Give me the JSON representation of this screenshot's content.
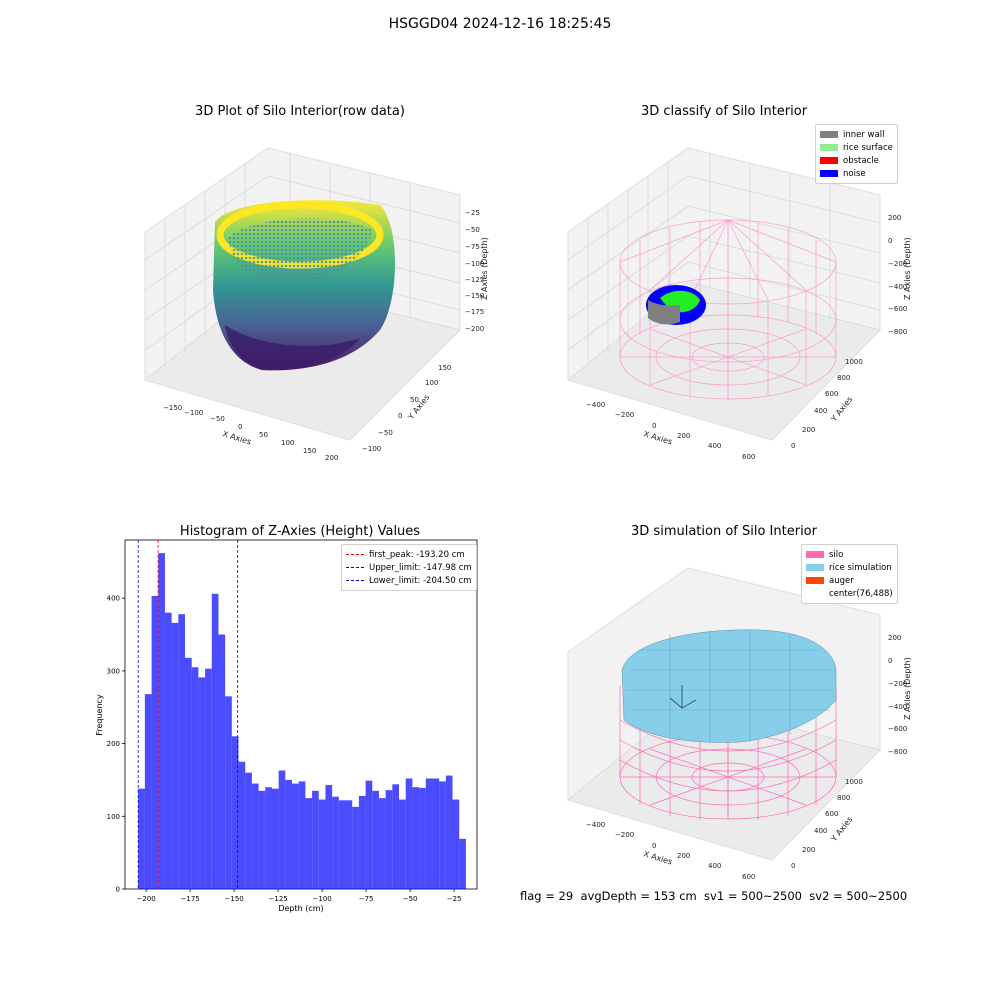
{
  "figure": {
    "suptitle": "HSGGD04 2024-12-16 18:25:45",
    "footer": "flag = 29  avgDepth = 153 cm  sv1 = 500~2500  sv2 = 500~2500"
  },
  "panels": {
    "raw": {
      "title": "3D Plot of Silo Interior(row data)",
      "xlabel": "X Axies",
      "ylabel": "Y Axies",
      "zlabel": "Z Axies (Depth)",
      "xticks": [
        "−150",
        "−100",
        "−50",
        "0",
        "50",
        "100",
        "150",
        "200"
      ],
      "yticks": [
        "−100",
        "−50",
        "0",
        "50",
        "100",
        "150"
      ],
      "zticks": [
        "−25",
        "−50",
        "−75",
        "−100",
        "−125",
        "−150",
        "−175",
        "−200"
      ]
    },
    "classify": {
      "title": "3D classify of Silo Interior",
      "xlabel": "X Axies",
      "ylabel": "Y Axies",
      "zlabel": "Z Axies (Depth)",
      "xticks": [
        "−400",
        "−200",
        "0",
        "200",
        "400",
        "600"
      ],
      "yticks": [
        "0",
        "200",
        "400",
        "600",
        "800",
        "1000"
      ],
      "zticks": [
        "200",
        "0",
        "−200",
        "−400",
        "−600",
        "−800"
      ],
      "legend": [
        {
          "label": "inner wall",
          "color": "#808080"
        },
        {
          "label": "rice surface",
          "color": "#90ee90"
        },
        {
          "label": "obstacle",
          "color": "#ff0000"
        },
        {
          "label": "noise",
          "color": "#0000ff"
        }
      ]
    },
    "histogram": {
      "title": "Histogram of Z-Axies (Height) Values"
    },
    "simulation": {
      "title": "3D simulation of Silo Interior",
      "xlabel": "X Axies",
      "ylabel": "Y Axies",
      "zlabel": "Z Axies (Depth)",
      "xticks": [
        "−400",
        "−200",
        "0",
        "200",
        "400",
        "600"
      ],
      "yticks": [
        "0",
        "200",
        "400",
        "600",
        "800",
        "1000"
      ],
      "zticks": [
        "200",
        "0",
        "−200",
        "−400",
        "−600",
        "−800"
      ],
      "legend": [
        {
          "label": "silo",
          "color": "#ff69b4"
        },
        {
          "label": "rice simulation",
          "color": "#87ceeb"
        },
        {
          "label": "auger",
          "color": "#ff4500"
        },
        {
          "label": "center(76,488)",
          "color": ""
        }
      ]
    }
  },
  "chart_data": [
    {
      "type": "bar",
      "title": "Histogram of Z-Axies (Height) Values",
      "xlabel": "Depth (cm)",
      "ylabel": "Frequency",
      "xlim": [
        -212,
        -12
      ],
      "ylim": [
        0,
        480
      ],
      "xticks": [
        -200,
        -175,
        -150,
        -125,
        -100,
        -75,
        -50,
        -25
      ],
      "xtick_labels": [
        "−200",
        "−175",
        "−150",
        "−125",
        "−100",
        "−75",
        "−50",
        "−25"
      ],
      "yticks": [
        0,
        100,
        200,
        300,
        400
      ],
      "bar_color": "#0000ff",
      "bar_alpha": 0.7,
      "bins": {
        "start": -204.5,
        "width": 3.8,
        "counts": [
          138,
          268,
          403,
          462,
          380,
          366,
          378,
          318,
          305,
          291,
          303,
          406,
          350,
          265,
          210,
          175,
          160,
          145,
          135,
          140,
          138,
          163,
          150,
          145,
          148,
          125,
          135,
          123,
          143,
          127,
          122,
          122,
          113,
          128,
          149,
          135,
          125,
          136,
          144,
          123,
          152,
          140,
          139,
          152,
          152,
          148,
          156,
          123,
          69
        ]
      },
      "lines": [
        {
          "label": "first_peak: -193.20 cm",
          "x": -193.2,
          "color": "#ff0000"
        },
        {
          "label": "Upper_limit: -147.98 cm",
          "x": -147.98,
          "color": "#0000cc"
        },
        {
          "label": "Lower_limit: -204.50 cm",
          "x": -204.5,
          "color": "#0000cc"
        }
      ],
      "legend_position": "top-right"
    }
  ]
}
